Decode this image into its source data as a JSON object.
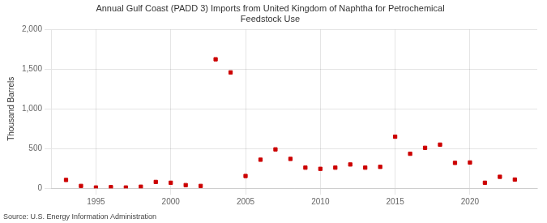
{
  "chart_data": {
    "type": "scatter",
    "title": "Annual Gulf Coast (PADD 3) Imports from United Kingdom of Naphtha for Petrochemical\nFeedstock Use",
    "ylabel": "Thousand Barrels",
    "annotations": [
      "Source: U.S. Energy Information Administration"
    ],
    "x": [
      1993,
      1994,
      1995,
      1996,
      1997,
      1998,
      1999,
      2000,
      2001,
      2002,
      2003,
      2004,
      2005,
      2006,
      2007,
      2008,
      2009,
      2010,
      2011,
      2012,
      2013,
      2014,
      2015,
      2016,
      2017,
      2018,
      2019,
      2020,
      2021,
      2022,
      2023
    ],
    "values": [
      105,
      30,
      10,
      15,
      10,
      20,
      80,
      70,
      40,
      30,
      1625,
      1460,
      155,
      360,
      490,
      370,
      260,
      245,
      260,
      300,
      260,
      270,
      650,
      435,
      510,
      550,
      320,
      325,
      70,
      145,
      110
    ],
    "color": "#cc0000",
    "marker": "square",
    "xlim": [
      1992,
      2024.5
    ],
    "xticks": [
      1995,
      2000,
      2005,
      2010,
      2015,
      2020
    ],
    "ylim": [
      0,
      2000
    ],
    "yticks": [
      0,
      500,
      {
        "value": 1000,
        "label": "1,000"
      },
      {
        "value": 1500,
        "label": "1,500"
      },
      {
        "value": 2000,
        "label": "2,000"
      }
    ],
    "grid": true
  }
}
